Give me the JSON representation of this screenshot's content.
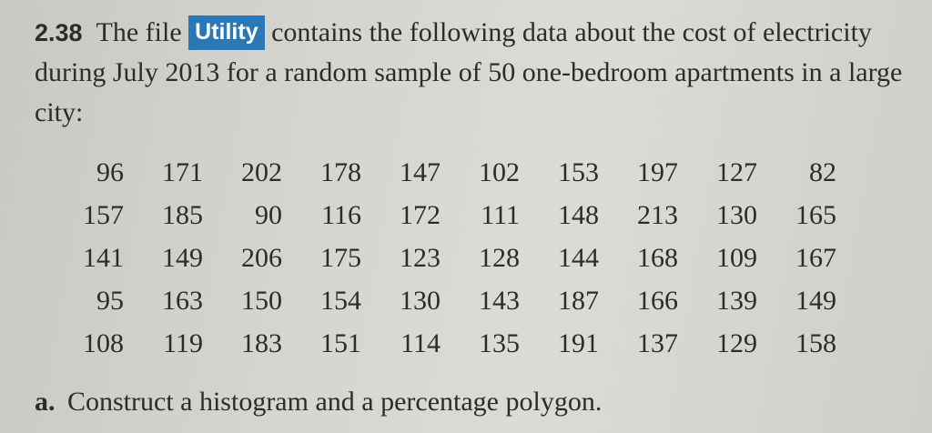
{
  "problem": {
    "number": "2.38",
    "text_before": "The file",
    "file_name": "Utility",
    "text_after": "contains the following data about the cost of electricity during July 2013 for a random sample of 50 one-bedroom apartments in a large city:"
  },
  "data_rows": [
    [
      "96",
      "171",
      "202",
      "178",
      "147",
      "102",
      "153",
      "197",
      "127",
      "82"
    ],
    [
      "157",
      "185",
      "90",
      "116",
      "172",
      "111",
      "148",
      "213",
      "130",
      "165"
    ],
    [
      "141",
      "149",
      "206",
      "175",
      "123",
      "128",
      "144",
      "168",
      "109",
      "167"
    ],
    [
      "95",
      "163",
      "150",
      "154",
      "130",
      "143",
      "187",
      "166",
      "139",
      "149"
    ],
    [
      "108",
      "119",
      "183",
      "151",
      "114",
      "135",
      "191",
      "137",
      "129",
      "158"
    ]
  ],
  "question_a": {
    "label": "a.",
    "text": "Construct a histogram and a percentage polygon."
  }
}
